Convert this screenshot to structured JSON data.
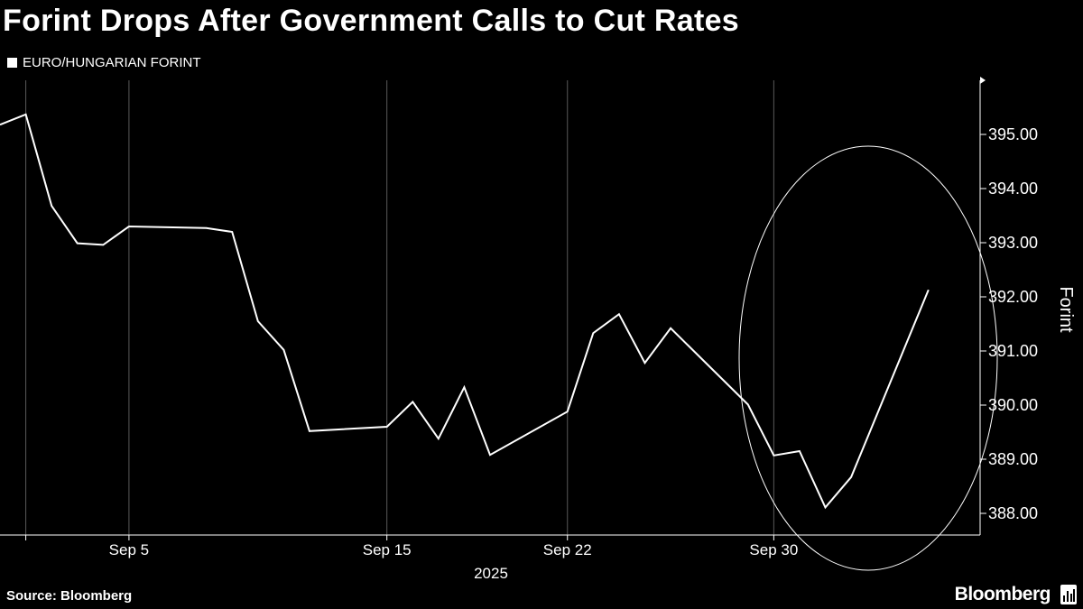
{
  "header": {
    "title": "Forint Drops After Government Calls to Cut Rates"
  },
  "legend": {
    "label": "EURO/HUNGARIAN FORINT"
  },
  "footer": {
    "source": "Source: Bloomberg",
    "brand": "Bloomberg"
  },
  "colors": {
    "background": "#000000",
    "line": "#ffffff",
    "axis": "#ffffff",
    "gridline": "#5a5a5a"
  },
  "chart_data": {
    "type": "line",
    "title": "Forint Drops After Government Calls to Cut Rates",
    "xlabel": "2025",
    "ylabel": "Forint",
    "ylim": [
      387.6,
      396.0
    ],
    "yticks": [
      388,
      389,
      390,
      391,
      392,
      393,
      394,
      395
    ],
    "ytick_labels": [
      "388.00",
      "389.00",
      "390.00",
      "391.00",
      "392.00",
      "393.00",
      "394.00",
      "395.00"
    ],
    "xlim": [
      "2025-08-31",
      "2025-10-08"
    ],
    "xticks": [
      "2025-09-01",
      "2025-09-05",
      "2025-09-15",
      "2025-09-22",
      "2025-09-30"
    ],
    "xtick_labels": [
      "",
      "Sep 5",
      "Sep 15",
      "Sep 22",
      "Sep 30"
    ],
    "year_label": "2025",
    "series": [
      {
        "name": "EURO/HUNGARIAN FORINT",
        "x": [
          "2025-08-31",
          "2025-09-01",
          "2025-09-02",
          "2025-09-03",
          "2025-09-04",
          "2025-09-05",
          "2025-09-08",
          "2025-09-09",
          "2025-09-10",
          "2025-09-11",
          "2025-09-12",
          "2025-09-15",
          "2025-09-16",
          "2025-09-17",
          "2025-09-18",
          "2025-09-19",
          "2025-09-22",
          "2025-09-23",
          "2025-09-24",
          "2025-09-25",
          "2025-09-26",
          "2025-09-29",
          "2025-09-30",
          "2025-10-01",
          "2025-10-02",
          "2025-10-03",
          "2025-10-06",
          "2025-10-07"
        ],
        "values": [
          395.18,
          395.37,
          393.68,
          392.99,
          392.96,
          393.3,
          393.27,
          393.2,
          391.55,
          391.02,
          389.52,
          389.6,
          390.06,
          389.38,
          390.33,
          389.08,
          389.88,
          391.33,
          391.68,
          390.78,
          391.42,
          390.01,
          389.07,
          389.15,
          388.11,
          388.67,
          392.13,
          null
        ]
      }
    ],
    "annotations": [
      {
        "shape": "ellipse",
        "around": "2025-09-29 to 2025-10-07",
        "description": "circle highlighting recent rise"
      }
    ]
  }
}
